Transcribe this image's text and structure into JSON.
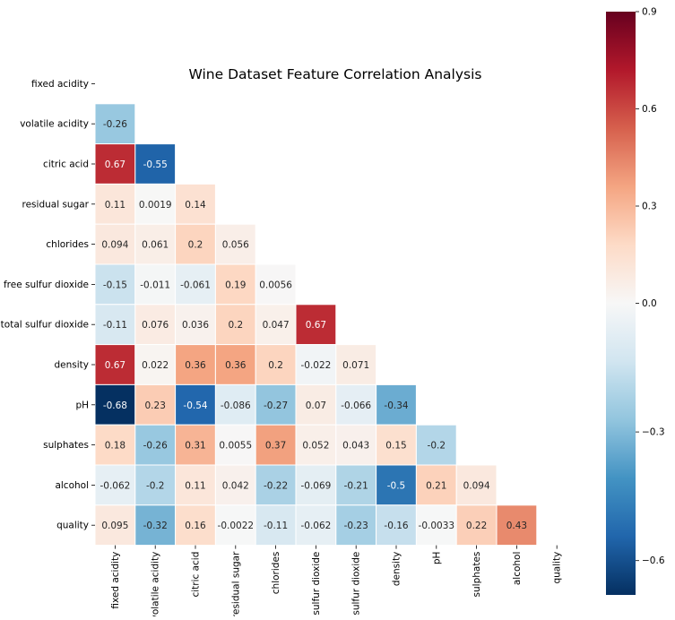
{
  "chart_data": {
    "type": "heatmap",
    "title": "Wine Dataset Feature Correlation Analysis",
    "mask": "upper-triangle-including-diagonal",
    "labels": [
      "fixed acidity",
      "volatile acidity",
      "citric acid",
      "residual sugar",
      "chlorides",
      "free sulfur dioxide",
      "total sulfur dioxide",
      "density",
      "pH",
      "sulphates",
      "alcohol",
      "quality"
    ],
    "rows": [
      [],
      [
        "-0.26"
      ],
      [
        "0.67",
        "-0.55"
      ],
      [
        "0.11",
        "0.0019",
        "0.14"
      ],
      [
        "0.094",
        "0.061",
        "0.2",
        "0.056"
      ],
      [
        "-0.15",
        "-0.011",
        "-0.061",
        "0.19",
        "0.0056"
      ],
      [
        "-0.11",
        "0.076",
        "0.036",
        "0.2",
        "0.047",
        "0.67"
      ],
      [
        "0.67",
        "0.022",
        "0.36",
        "0.36",
        "0.2",
        "-0.022",
        "0.071"
      ],
      [
        "-0.68",
        "0.23",
        "-0.54",
        "-0.086",
        "-0.27",
        "0.07",
        "-0.066",
        "-0.34"
      ],
      [
        "0.18",
        "-0.26",
        "0.31",
        "0.0055",
        "0.37",
        "0.052",
        "0.043",
        "0.15",
        "-0.2"
      ],
      [
        "-0.062",
        "-0.2",
        "0.11",
        "0.042",
        "-0.22",
        "-0.069",
        "-0.21",
        "-0.5",
        "0.21",
        "0.094"
      ],
      [
        "0.095",
        "-0.32",
        "0.16",
        "-0.0022",
        "-0.11",
        "-0.062",
        "-0.23",
        "-0.16",
        "-0.0033",
        "0.22",
        "0.43"
      ]
    ],
    "colorbar": {
      "vmin": -0.68,
      "vmax": 0.9,
      "center": 0,
      "ticks": [
        0.9,
        0.6,
        0.3,
        0.0,
        -0.3,
        -0.6
      ],
      "tick_labels": [
        "0.9",
        "0.6",
        "0.3",
        "0.0",
        "−0.3",
        "−0.6"
      ],
      "colormap": "RdBu_r"
    },
    "grid": false,
    "cell_lines": "white"
  }
}
